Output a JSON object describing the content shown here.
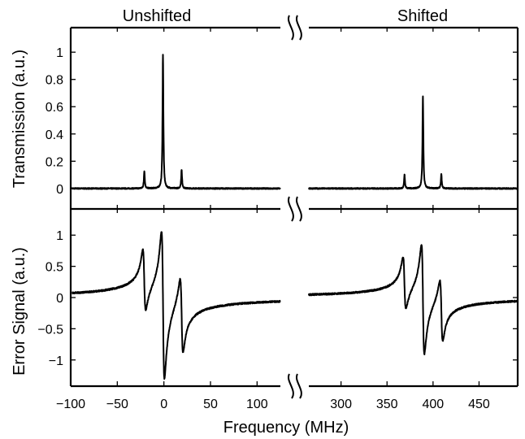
{
  "chart_data": {
    "type": "line",
    "xlabel": "Frequency (MHz)",
    "x_segments": [
      {
        "title": "Unshifted",
        "xlim": [
          -100,
          125
        ],
        "ticks": [
          -100,
          -50,
          0,
          50,
          100
        ],
        "tick_labels": [
          "−100",
          "−50",
          "0",
          "50",
          "100"
        ]
      },
      {
        "title": "Shifted",
        "xlim": [
          265,
          492
        ],
        "ticks": [
          300,
          350,
          400,
          450
        ],
        "tick_labels": [
          "300",
          "350",
          "400",
          "450"
        ]
      }
    ],
    "panels": [
      {
        "ylabel": "Transmission (a.u.)",
        "ylim": [
          -0.15,
          1.18
        ],
        "yticks": [
          0,
          0.2,
          0.4,
          0.6,
          0.8,
          1
        ],
        "ytick_labels": [
          "0",
          "0.2",
          "0.4",
          "0.6",
          "0.8",
          "1"
        ],
        "series": [
          {
            "segment": 0,
            "baseline": 0.0,
            "peaks": [
              {
                "x": -21,
                "height": 0.13
              },
              {
                "x": -1,
                "height": 0.98
              },
              {
                "x": 19,
                "height": 0.14
              }
            ]
          },
          {
            "segment": 1,
            "baseline": 0.0,
            "peaks": [
              {
                "x": 369,
                "height": 0.1
              },
              {
                "x": 389,
                "height": 0.68
              },
              {
                "x": 409,
                "height": 0.11
              }
            ]
          }
        ]
      },
      {
        "ylabel": "Error Signal (a.u.)",
        "ylim": [
          -1.42,
          1.42
        ],
        "yticks": [
          -1,
          -0.5,
          0,
          0.5,
          1
        ],
        "ytick_labels": [
          "−1",
          "−0.5",
          "0",
          "0.5",
          "1"
        ],
        "series": [
          {
            "segment": 0,
            "baseline": 0.0,
            "features": [
              {
                "x": -21,
                "max": 0.57,
                "min": -0.42
              },
              {
                "x": -1,
                "max": 1.04,
                "min": -1.33
              },
              {
                "x": 19,
                "max": 0.56,
                "min": -0.65
              }
            ]
          },
          {
            "segment": 1,
            "baseline": 0.0,
            "features": [
              {
                "x": 369,
                "max": 0.49,
                "min": -0.36
              },
              {
                "x": 389,
                "max": 0.84,
                "min": -0.93
              },
              {
                "x": 409,
                "max": 0.46,
                "min": -0.53
              }
            ]
          }
        ]
      }
    ]
  }
}
